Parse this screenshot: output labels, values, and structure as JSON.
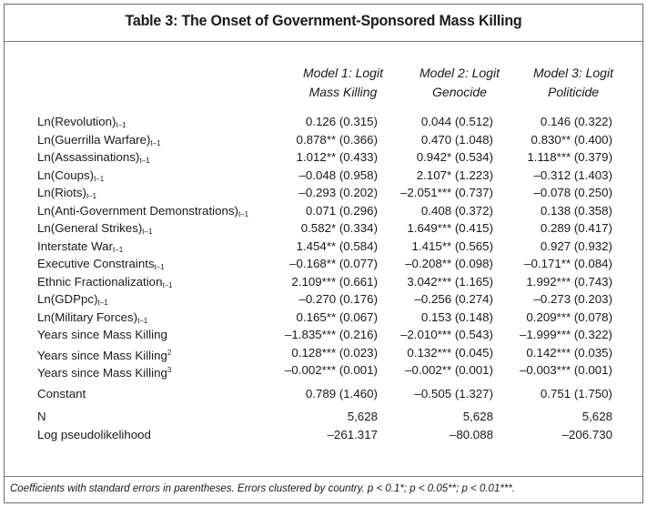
{
  "title": "Table 3: The Onset of Government-Sponsored Mass Killing",
  "models": [
    {
      "line1": "Model 1: Logit",
      "line2": "Mass Killing"
    },
    {
      "line1": "Model 2: Logit",
      "line2": "Genocide"
    },
    {
      "line1": "Model 3: Logit",
      "line2": "Politicide"
    }
  ],
  "rows": [
    {
      "label": "Ln(Revolution)",
      "sub": "t–1",
      "sup": "",
      "values": [
        "0.126 (0.315)",
        "0.044 (0.512)",
        "0.146 (0.322)"
      ]
    },
    {
      "label": "Ln(Guerrilla Warfare)",
      "sub": "t–1",
      "sup": "",
      "values": [
        "0.878** (0.366)",
        "0.470 (1.048)",
        "0.830** (0.400)"
      ]
    },
    {
      "label": "Ln(Assassinations)",
      "sub": "t–1",
      "sup": "",
      "values": [
        "1.012** (0.433)",
        "0.942* (0.534)",
        "1.118*** (0.379)"
      ]
    },
    {
      "label": "Ln(Coups)",
      "sub": "t–1",
      "sup": "",
      "values": [
        "–0.048 (0.958)",
        "2.107* (1.223)",
        "–0.312 (1.403)"
      ]
    },
    {
      "label": "Ln(Riots)",
      "sub": "t–1",
      "sup": "",
      "values": [
        "–0.293 (0.202)",
        "–2.051*** (0.737)",
        "–0.078 (0.250)"
      ]
    },
    {
      "label": "Ln(Anti-Government Demonstrations)",
      "sub": "t–1",
      "sup": "",
      "values": [
        "0.071 (0.296)",
        "0.408 (0.372)",
        "0.138 (0.358)"
      ]
    },
    {
      "label": "Ln(General Strikes)",
      "sub": "t–1",
      "sup": "",
      "values": [
        "0.582* (0.334)",
        "1.649*** (0.415)",
        "0.289 (0.417)"
      ]
    },
    {
      "label": "Interstate War",
      "sub": "t–1",
      "sup": "",
      "values": [
        "1.454** (0.584)",
        "1.415** (0.565)",
        "0.927 (0.932)"
      ]
    },
    {
      "label": "Executive Constraints",
      "sub": "t–1",
      "sup": "",
      "values": [
        "–0.168** (0.077)",
        "–0.208** (0.098)",
        "–0.171** (0.084)"
      ]
    },
    {
      "label": "Ethnic Fractionalization",
      "sub": "t–1",
      "sup": "",
      "values": [
        "2.109*** (0.661)",
        "3.042*** (1.165)",
        "1.992*** (0.743)"
      ]
    },
    {
      "label": "Ln(GDPpc)",
      "sub": "t–1",
      "sup": "",
      "values": [
        "–0.270 (0.176)",
        "–0.256 (0.274)",
        "–0.273 (0.203)"
      ]
    },
    {
      "label": "Ln(Military Forces)",
      "sub": "t–1",
      "sup": "",
      "values": [
        "0.165** (0.067)",
        "0.153 (0.148)",
        "0.209*** (0.078)"
      ]
    },
    {
      "label": "Years since Mass Killing",
      "sub": "",
      "sup": "",
      "values": [
        "–1.835*** (0.216)",
        "–2.010*** (0.543)",
        "–1.999*** (0.322)"
      ]
    },
    {
      "label": "Years since Mass Killing",
      "sub": "",
      "sup": "2",
      "values": [
        "0.128*** (0.023)",
        "0.132*** (0.045)",
        "0.142*** (0.035)"
      ]
    },
    {
      "label": "Years since Mass Killing",
      "sub": "",
      "sup": "3",
      "values": [
        "–0.002*** (0.001)",
        "–0.002** (0.001)",
        "–0.003*** (0.001)"
      ]
    },
    {
      "label": "Constant",
      "sub": "",
      "sup": "",
      "values": [
        "0.789 (1.460)",
        "–0.505 (1.327)",
        "0.751 (1.750)"
      ]
    }
  ],
  "stats": [
    {
      "label": "N",
      "sub": "",
      "sup": "",
      "values": [
        "5,628",
        "5,628",
        "5,628"
      ]
    },
    {
      "label": "Log pseudolikelihood",
      "sub": "",
      "sup": "",
      "values": [
        "–261.317",
        "–80.088",
        "–206.730"
      ]
    }
  ],
  "footnote": "Coefficients with standard errors in parentheses. Errors clustered by country. p < 0.1*; p < 0.05**; p < 0.01***."
}
